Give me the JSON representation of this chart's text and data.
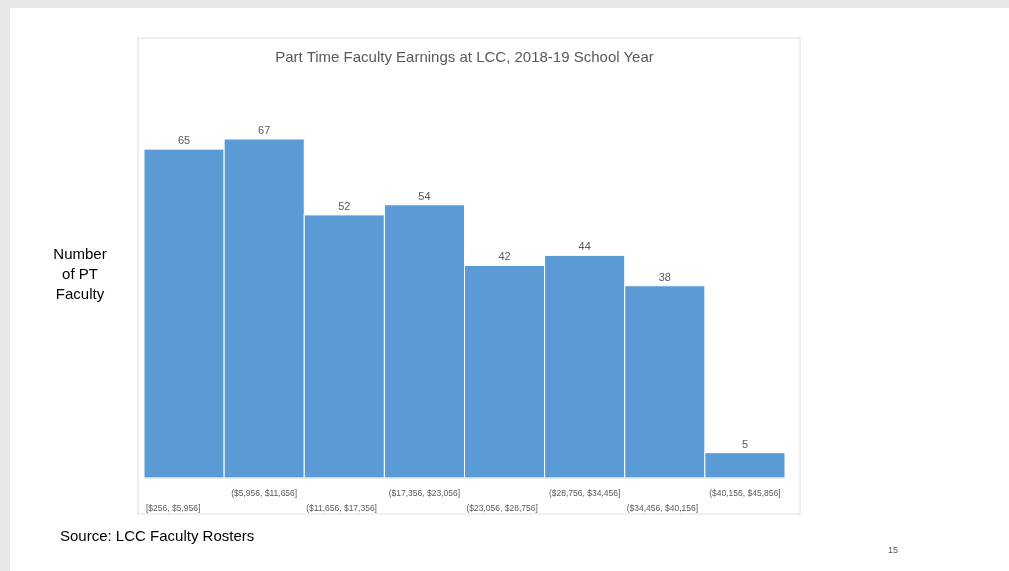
{
  "chart_data": {
    "type": "bar",
    "title": "Part Time Faculty Earnings at LCC, 2018-19 School Year",
    "ylabel": "Number of PT Faculty",
    "categories": [
      "[$256, $5,956]",
      "($5,956, $11,656]",
      "($11,656, $17,356]",
      "($17,356, $23,056]",
      "($23,056, $28,756]",
      "($28,756, $34,456]",
      "($34,456, $40,156]",
      "($40,156, $45,856]"
    ],
    "values": [
      65,
      67,
      52,
      54,
      42,
      44,
      38,
      5
    ],
    "color": "#5b9bd5",
    "data_labels": true,
    "annotations": [
      "Source: LCC Faculty Rosters",
      "15"
    ]
  }
}
